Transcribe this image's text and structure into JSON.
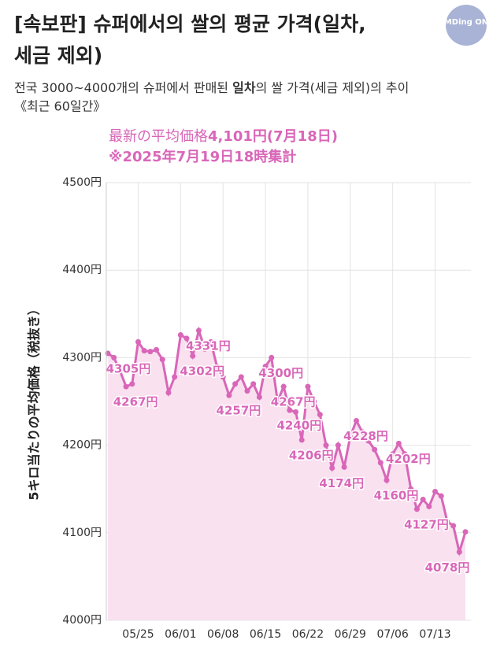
{
  "chart_data": {
    "type": "line",
    "title": [
      "[속보판] 슈퍼에서의 쌀의 평균 가격(일차,",
      "세금 제외)"
    ],
    "subtitle": [
      "전국 3000~4000개의 슈퍼에서 판매된 ",
      "일차",
      "의 쌀 가격(세금 제외)의 추이",
      "《최근 60일간》"
    ],
    "logo": "MDing ON",
    "annotation": [
      "最新の平均価格",
      "4,101円(7月18日)",
      "※2025年7月19日18時集計"
    ],
    "ylabel": "5キロ当たりの平均価格（税抜き）",
    "categories": [
      null,
      null,
      null,
      null,
      null,
      "05/25",
      null,
      null,
      null,
      null,
      null,
      null,
      "06/01",
      null,
      null,
      null,
      null,
      null,
      null,
      "06/08",
      null,
      null,
      null,
      null,
      null,
      null,
      "06/15",
      null,
      null,
      null,
      null,
      null,
      null,
      "06/22",
      null,
      null,
      null,
      null,
      null,
      null,
      "06/29",
      null,
      null,
      null,
      null,
      null,
      null,
      "07/06",
      null,
      null,
      null,
      null,
      null,
      null,
      "07/13",
      null,
      null,
      null,
      null,
      null
    ],
    "series": [
      {
        "name": null,
        "color": "#d966b8",
        "values": [
          4305,
          4300,
          4285,
          4267,
          4270,
          4318,
          4308,
          4307,
          4309,
          4298,
          4260,
          4278,
          4326,
          4322,
          4302,
          4331,
          4310,
          4318,
          4290,
          4278,
          4257,
          4270,
          4278,
          4262,
          4270,
          4255,
          4290,
          4300,
          4250,
          4267,
          4240,
          4238,
          4206,
          4267,
          4250,
          4235,
          4200,
          4174,
          4200,
          4175,
          4210,
          4228,
          4215,
          4205,
          4195,
          4180,
          4160,
          4190,
          4202,
          4190,
          4150,
          4127,
          4138,
          4130,
          4147,
          4142,
          4113,
          4108,
          4078,
          4101
        ],
        "value_labels": [
          "4305円",
          null,
          null,
          "4267円",
          null,
          null,
          null,
          null,
          null,
          null,
          null,
          null,
          null,
          null,
          "4302円",
          "4331円",
          null,
          null,
          null,
          null,
          "4257円",
          null,
          null,
          null,
          null,
          null,
          null,
          "4300円",
          null,
          "4267円",
          "4240円",
          null,
          "4206円",
          null,
          null,
          null,
          null,
          "4174円",
          null,
          null,
          null,
          "4228円",
          null,
          null,
          null,
          null,
          "4160円",
          null,
          "4202円",
          null,
          null,
          "4127円",
          null,
          null,
          null,
          null,
          null,
          null,
          "4078円",
          null
        ]
      }
    ],
    "area_color": "#f9e1f0",
    "ylim": [
      4000,
      4500
    ],
    "yticks": [
      {
        "value": 4000,
        "label": "4000円"
      },
      {
        "value": 4100,
        "label": "4100円"
      },
      {
        "value": 4200,
        "label": "4200円"
      },
      {
        "value": 4300,
        "label": "4300円"
      },
      {
        "value": 4400,
        "label": "4400円"
      },
      {
        "value": 4500,
        "label": "4500円"
      }
    ],
    "grid": true
  }
}
